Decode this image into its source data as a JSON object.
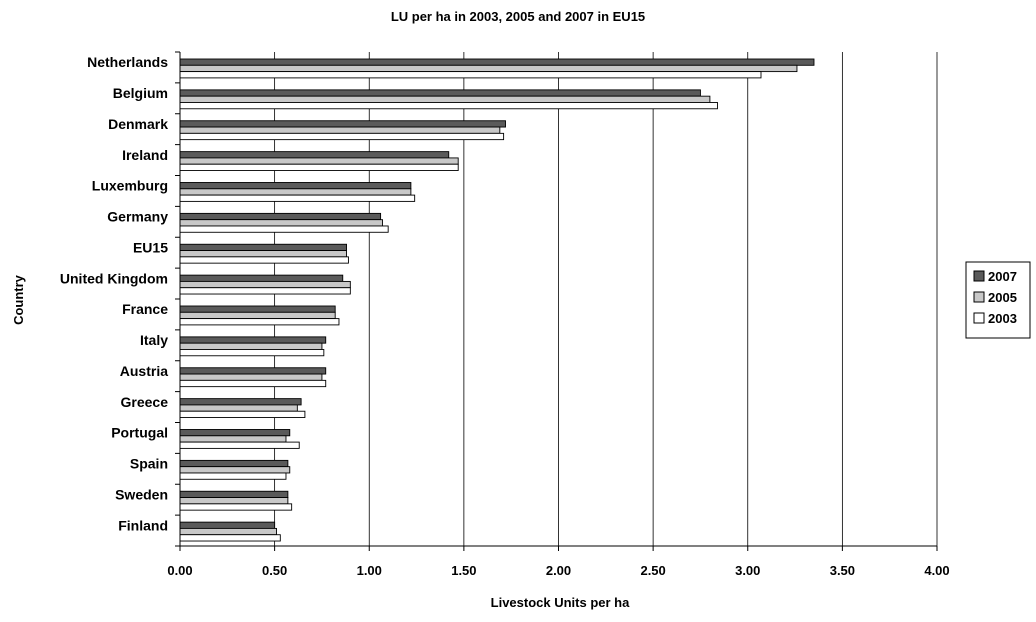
{
  "chart_data": {
    "type": "bar",
    "orientation": "horizontal",
    "title": "LU per ha in 2003, 2005 and 2007 in EU15",
    "xlabel": "Livestock Units per ha",
    "ylabel": "Country",
    "xlim": [
      0,
      4
    ],
    "xticks": [
      "0.00",
      "0.50",
      "1.00",
      "1.50",
      "2.00",
      "2.50",
      "3.00",
      "3.50",
      "4.00"
    ],
    "grid": "vertical",
    "legend_position": "right",
    "categories": [
      "Netherlands",
      "Belgium",
      "Denmark",
      "Ireland",
      "Luxemburg",
      "Germany",
      "EU15",
      "United Kingdom",
      "France",
      "Italy",
      "Austria",
      "Greece",
      "Portugal",
      "Spain",
      "Sweden",
      "Finland"
    ],
    "series": [
      {
        "name": "2007",
        "color": "#5a5a5a",
        "values": [
          3.35,
          2.75,
          1.72,
          1.42,
          1.22,
          1.06,
          0.88,
          0.86,
          0.82,
          0.77,
          0.77,
          0.64,
          0.58,
          0.57,
          0.57,
          0.5
        ]
      },
      {
        "name": "2005",
        "color": "#c8c8c8",
        "values": [
          3.26,
          2.8,
          1.69,
          1.47,
          1.22,
          1.07,
          0.88,
          0.9,
          0.82,
          0.75,
          0.75,
          0.62,
          0.56,
          0.58,
          0.57,
          0.51
        ]
      },
      {
        "name": "2003",
        "color": "#ffffff",
        "values": [
          3.07,
          2.84,
          1.71,
          1.47,
          1.24,
          1.1,
          0.89,
          0.9,
          0.84,
          0.76,
          0.77,
          0.66,
          0.63,
          0.56,
          0.59,
          0.53
        ]
      }
    ]
  }
}
